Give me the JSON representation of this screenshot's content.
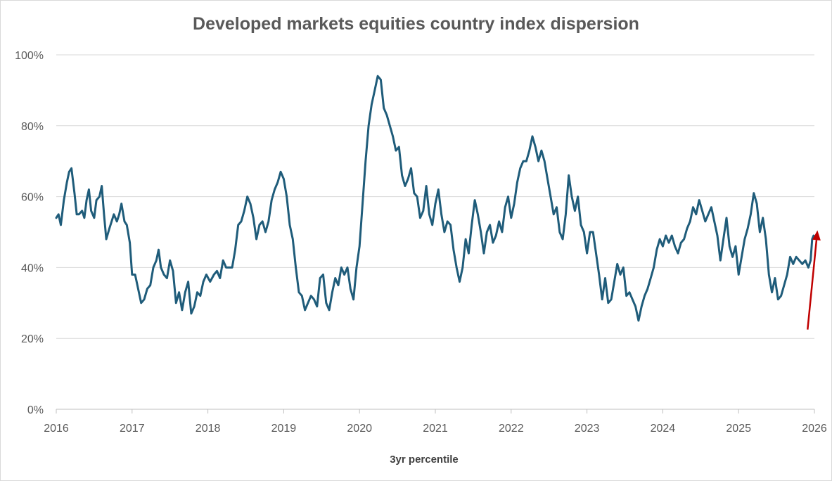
{
  "chart_data": {
    "type": "line",
    "title": "Developed markets equities country index dispersion",
    "xlabel": "3yr percentile",
    "ylabel": "",
    "xlim": [
      2016,
      2026
    ],
    "ylim": [
      0,
      100
    ],
    "x_ticks": [
      2016,
      2017,
      2018,
      2019,
      2020,
      2021,
      2022,
      2023,
      2024,
      2025,
      2026
    ],
    "x_tick_labels": [
      "2016",
      "2017",
      "2018",
      "2019",
      "2020",
      "2021",
      "2022",
      "2023",
      "2024",
      "2025",
      "2026"
    ],
    "y_ticks": [
      0,
      20,
      40,
      60,
      80,
      100
    ],
    "y_tick_labels": [
      "0%",
      "20%",
      "40%",
      "60%",
      "80%",
      "100%"
    ],
    "grid": true,
    "series": [
      {
        "name": "3yr percentile",
        "color": "#1f5c7a",
        "points": [
          [
            2016.0,
            54
          ],
          [
            2016.03,
            55
          ],
          [
            2016.06,
            52
          ],
          [
            2016.1,
            59
          ],
          [
            2016.14,
            64
          ],
          [
            2016.17,
            67
          ],
          [
            2016.2,
            68
          ],
          [
            2016.24,
            61
          ],
          [
            2016.27,
            55
          ],
          [
            2016.3,
            55
          ],
          [
            2016.34,
            56
          ],
          [
            2016.37,
            54
          ],
          [
            2016.4,
            59
          ],
          [
            2016.43,
            62
          ],
          [
            2016.46,
            56
          ],
          [
            2016.5,
            54
          ],
          [
            2016.53,
            59
          ],
          [
            2016.57,
            60
          ],
          [
            2016.6,
            63
          ],
          [
            2016.63,
            55
          ],
          [
            2016.66,
            48
          ],
          [
            2016.7,
            51
          ],
          [
            2016.73,
            53
          ],
          [
            2016.76,
            55
          ],
          [
            2016.8,
            53
          ],
          [
            2016.83,
            55
          ],
          [
            2016.86,
            58
          ],
          [
            2016.9,
            53
          ],
          [
            2016.93,
            52
          ],
          [
            2016.97,
            47
          ],
          [
            2017.0,
            38
          ],
          [
            2017.04,
            38
          ],
          [
            2017.08,
            34
          ],
          [
            2017.12,
            30
          ],
          [
            2017.16,
            31
          ],
          [
            2017.2,
            34
          ],
          [
            2017.24,
            35
          ],
          [
            2017.28,
            40
          ],
          [
            2017.32,
            42
          ],
          [
            2017.35,
            45
          ],
          [
            2017.38,
            40
          ],
          [
            2017.42,
            38
          ],
          [
            2017.46,
            37
          ],
          [
            2017.5,
            42
          ],
          [
            2017.54,
            39
          ],
          [
            2017.58,
            30
          ],
          [
            2017.62,
            33
          ],
          [
            2017.66,
            28
          ],
          [
            2017.7,
            33
          ],
          [
            2017.74,
            36
          ],
          [
            2017.78,
            27
          ],
          [
            2017.82,
            29
          ],
          [
            2017.86,
            33
          ],
          [
            2017.9,
            32
          ],
          [
            2017.94,
            36
          ],
          [
            2017.98,
            38
          ],
          [
            2018.03,
            36
          ],
          [
            2018.08,
            38
          ],
          [
            2018.12,
            39
          ],
          [
            2018.16,
            37
          ],
          [
            2018.2,
            42
          ],
          [
            2018.24,
            40
          ],
          [
            2018.28,
            40
          ],
          [
            2018.32,
            40
          ],
          [
            2018.36,
            45
          ],
          [
            2018.4,
            52
          ],
          [
            2018.44,
            53
          ],
          [
            2018.48,
            56
          ],
          [
            2018.52,
            60
          ],
          [
            2018.56,
            58
          ],
          [
            2018.6,
            54
          ],
          [
            2018.64,
            48
          ],
          [
            2018.68,
            52
          ],
          [
            2018.72,
            53
          ],
          [
            2018.76,
            50
          ],
          [
            2018.8,
            53
          ],
          [
            2018.84,
            59
          ],
          [
            2018.88,
            62
          ],
          [
            2018.92,
            64
          ],
          [
            2018.96,
            67
          ],
          [
            2019.0,
            65
          ],
          [
            2019.04,
            60
          ],
          [
            2019.08,
            52
          ],
          [
            2019.12,
            48
          ],
          [
            2019.16,
            40
          ],
          [
            2019.2,
            33
          ],
          [
            2019.24,
            32
          ],
          [
            2019.28,
            28
          ],
          [
            2019.32,
            30
          ],
          [
            2019.36,
            32
          ],
          [
            2019.4,
            31
          ],
          [
            2019.44,
            29
          ],
          [
            2019.48,
            37
          ],
          [
            2019.52,
            38
          ],
          [
            2019.56,
            30
          ],
          [
            2019.6,
            28
          ],
          [
            2019.64,
            33
          ],
          [
            2019.68,
            37
          ],
          [
            2019.72,
            35
          ],
          [
            2019.76,
            40
          ],
          [
            2019.8,
            38
          ],
          [
            2019.84,
            40
          ],
          [
            2019.88,
            34
          ],
          [
            2019.92,
            31
          ],
          [
            2019.96,
            40
          ],
          [
            2020.0,
            46
          ],
          [
            2020.04,
            58
          ],
          [
            2020.08,
            70
          ],
          [
            2020.12,
            80
          ],
          [
            2020.16,
            86
          ],
          [
            2020.2,
            90
          ],
          [
            2020.24,
            94
          ],
          [
            2020.28,
            93
          ],
          [
            2020.32,
            85
          ],
          [
            2020.36,
            83
          ],
          [
            2020.4,
            80
          ],
          [
            2020.44,
            77
          ],
          [
            2020.48,
            73
          ],
          [
            2020.52,
            74
          ],
          [
            2020.56,
            66
          ],
          [
            2020.6,
            63
          ],
          [
            2020.64,
            65
          ],
          [
            2020.68,
            68
          ],
          [
            2020.72,
            61
          ],
          [
            2020.76,
            60
          ],
          [
            2020.8,
            54
          ],
          [
            2020.84,
            56
          ],
          [
            2020.88,
            63
          ],
          [
            2020.92,
            55
          ],
          [
            2020.96,
            52
          ],
          [
            2021.0,
            58
          ],
          [
            2021.04,
            62
          ],
          [
            2021.08,
            55
          ],
          [
            2021.12,
            50
          ],
          [
            2021.16,
            53
          ],
          [
            2021.2,
            52
          ],
          [
            2021.24,
            45
          ],
          [
            2021.28,
            40
          ],
          [
            2021.32,
            36
          ],
          [
            2021.36,
            40
          ],
          [
            2021.4,
            48
          ],
          [
            2021.44,
            44
          ],
          [
            2021.48,
            52
          ],
          [
            2021.52,
            59
          ],
          [
            2021.56,
            55
          ],
          [
            2021.6,
            50
          ],
          [
            2021.64,
            44
          ],
          [
            2021.68,
            50
          ],
          [
            2021.72,
            52
          ],
          [
            2021.76,
            47
          ],
          [
            2021.8,
            49
          ],
          [
            2021.84,
            53
          ],
          [
            2021.88,
            50
          ],
          [
            2021.92,
            57
          ],
          [
            2021.96,
            60
          ],
          [
            2022.0,
            54
          ],
          [
            2022.04,
            58
          ],
          [
            2022.08,
            64
          ],
          [
            2022.12,
            68
          ],
          [
            2022.16,
            70
          ],
          [
            2022.2,
            70
          ],
          [
            2022.24,
            73
          ],
          [
            2022.28,
            77
          ],
          [
            2022.32,
            74
          ],
          [
            2022.36,
            70
          ],
          [
            2022.4,
            73
          ],
          [
            2022.44,
            70
          ],
          [
            2022.48,
            65
          ],
          [
            2022.52,
            60
          ],
          [
            2022.56,
            55
          ],
          [
            2022.6,
            57
          ],
          [
            2022.64,
            50
          ],
          [
            2022.68,
            48
          ],
          [
            2022.72,
            55
          ],
          [
            2022.76,
            66
          ],
          [
            2022.8,
            60
          ],
          [
            2022.84,
            56
          ],
          [
            2022.88,
            60
          ],
          [
            2022.92,
            52
          ],
          [
            2022.96,
            50
          ],
          [
            2023.0,
            44
          ],
          [
            2023.04,
            50
          ],
          [
            2023.08,
            50
          ],
          [
            2023.12,
            44
          ],
          [
            2023.16,
            38
          ],
          [
            2023.2,
            31
          ],
          [
            2023.24,
            37
          ],
          [
            2023.28,
            30
          ],
          [
            2023.32,
            31
          ],
          [
            2023.36,
            36
          ],
          [
            2023.4,
            41
          ],
          [
            2023.44,
            38
          ],
          [
            2023.48,
            40
          ],
          [
            2023.52,
            32
          ],
          [
            2023.56,
            33
          ],
          [
            2023.6,
            31
          ],
          [
            2023.64,
            29
          ],
          [
            2023.68,
            25
          ],
          [
            2023.72,
            29
          ],
          [
            2023.76,
            32
          ],
          [
            2023.8,
            34
          ],
          [
            2023.84,
            37
          ],
          [
            2023.88,
            40
          ],
          [
            2023.92,
            45
          ],
          [
            2023.96,
            48
          ],
          [
            2024.0,
            46
          ],
          [
            2024.04,
            49
          ],
          [
            2024.08,
            47
          ],
          [
            2024.12,
            49
          ],
          [
            2024.16,
            46
          ],
          [
            2024.2,
            44
          ],
          [
            2024.24,
            47
          ],
          [
            2024.28,
            48
          ],
          [
            2024.32,
            51
          ],
          [
            2024.36,
            53
          ],
          [
            2024.4,
            57
          ],
          [
            2024.44,
            55
          ],
          [
            2024.48,
            59
          ],
          [
            2024.52,
            56
          ],
          [
            2024.56,
            53
          ],
          [
            2024.6,
            55
          ],
          [
            2024.64,
            57
          ],
          [
            2024.68,
            53
          ],
          [
            2024.72,
            49
          ],
          [
            2024.76,
            42
          ],
          [
            2024.8,
            48
          ],
          [
            2024.84,
            54
          ],
          [
            2024.88,
            46
          ],
          [
            2024.92,
            43
          ],
          [
            2024.96,
            46
          ],
          [
            2025.0,
            38
          ],
          [
            2025.04,
            43
          ],
          [
            2025.08,
            48
          ],
          [
            2025.12,
            51
          ],
          [
            2025.16,
            55
          ],
          [
            2025.2,
            61
          ],
          [
            2025.24,
            58
          ],
          [
            2025.28,
            50
          ],
          [
            2025.32,
            54
          ],
          [
            2025.36,
            48
          ],
          [
            2025.4,
            38
          ],
          [
            2025.44,
            33
          ],
          [
            2025.48,
            37
          ],
          [
            2025.52,
            31
          ],
          [
            2025.56,
            32
          ],
          [
            2025.6,
            35
          ],
          [
            2025.64,
            38
          ],
          [
            2025.68,
            43
          ],
          [
            2025.72,
            41
          ],
          [
            2025.76,
            43
          ],
          [
            2025.8,
            42
          ],
          [
            2025.84,
            41
          ],
          [
            2025.88,
            42
          ],
          [
            2025.92,
            40
          ],
          [
            2025.95,
            42
          ],
          [
            2025.97,
            48
          ],
          [
            2025.99,
            49
          ]
        ]
      }
    ],
    "annotations": [
      {
        "type": "arrow",
        "color": "#c00000",
        "from": [
          2025.91,
          22.5
        ],
        "to": [
          2026.04,
          50.5
        ]
      }
    ]
  }
}
